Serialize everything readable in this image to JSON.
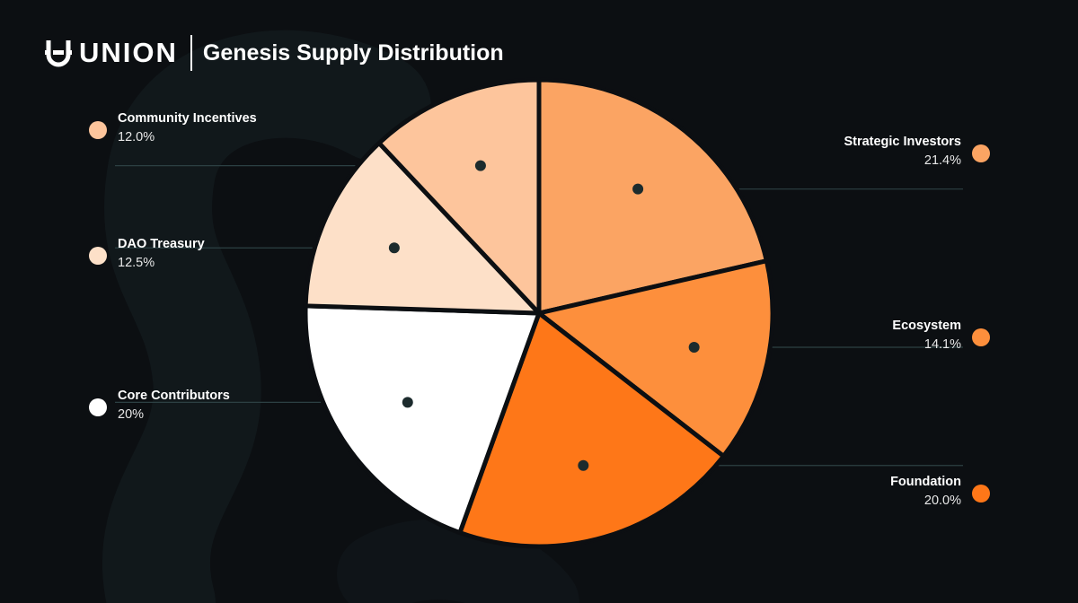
{
  "header": {
    "logo_text": "UNION",
    "title": "Genesis Supply Distribution"
  },
  "chart_data": {
    "type": "pie",
    "title": "Genesis Supply Distribution",
    "slices": [
      {
        "label": "Strategic Investors",
        "value": 21.4,
        "display": "21.4%",
        "color": "#fba463",
        "side": "right"
      },
      {
        "label": "Ecosystem",
        "value": 14.1,
        "display": "14.1%",
        "color": "#fd8f3c",
        "side": "right"
      },
      {
        "label": "Foundation",
        "value": 20.0,
        "display": "20.0%",
        "color": "#fe7718",
        "side": "right"
      },
      {
        "label": "Core Contributors",
        "value": 20,
        "display": "20%",
        "color": "#ffffff",
        "side": "left"
      },
      {
        "label": "DAO Treasury",
        "value": 12.5,
        "display": "12.5%",
        "color": "#fde0c8",
        "side": "left"
      },
      {
        "label": "Community Incentives",
        "value": 12.0,
        "display": "12.0%",
        "color": "#fdc59c",
        "side": "left"
      }
    ],
    "legend": "callouts left and right"
  },
  "colors": {
    "background": "#0c0f12",
    "separator": "#0c0f12",
    "leader_line": "#2c4043",
    "marker": "#1c2b2d"
  }
}
